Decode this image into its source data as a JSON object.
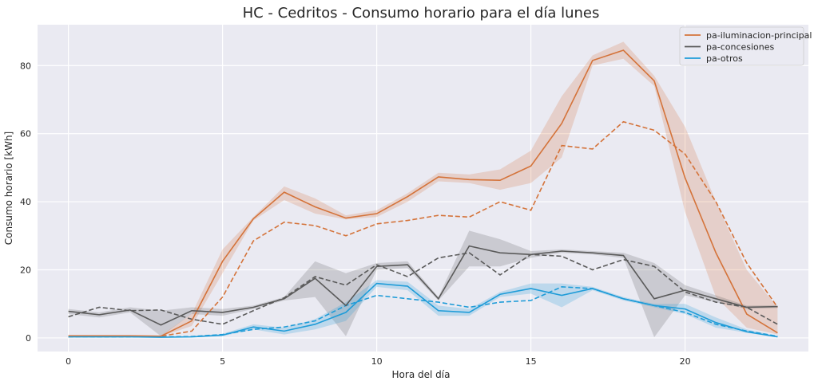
{
  "chart_data": {
    "type": "line",
    "title": "HC - Cedritos - Consumo horario para el día lunes",
    "xlabel": "Hora del día",
    "ylabel": "Consumo horario [kWh]",
    "xlim": [
      -1,
      24
    ],
    "ylim": [
      -4,
      92
    ],
    "xticks": [
      0,
      5,
      10,
      15,
      20
    ],
    "yticks": [
      0,
      20,
      40,
      60,
      80
    ],
    "grid": true,
    "legend_position": "top-right",
    "x": [
      0,
      1,
      2,
      3,
      4,
      5,
      6,
      7,
      8,
      9,
      10,
      11,
      12,
      13,
      14,
      15,
      16,
      17,
      18,
      19,
      20,
      21,
      22,
      23
    ],
    "series": [
      {
        "name": "pa-iluminacion-principal",
        "color": "#d4733a",
        "values": [
          0.6,
          0.6,
          0.6,
          0.5,
          5.0,
          22.5,
          35.0,
          42.8,
          38.5,
          35.2,
          36.5,
          41.5,
          47.3,
          46.5,
          46.3,
          50.5,
          63.0,
          81.5,
          84.5,
          75.5,
          47.0,
          25.0,
          7.0,
          1.5
        ],
        "lower": [
          0.5,
          0.5,
          0.5,
          0.4,
          3.5,
          19.0,
          34.5,
          40.5,
          36.5,
          34.8,
          35.5,
          40.0,
          46.0,
          45.5,
          43.5,
          45.5,
          53.0,
          80.0,
          82.0,
          74.0,
          37.0,
          12.0,
          3.0,
          1.0
        ],
        "upper": [
          0.8,
          0.8,
          0.8,
          0.7,
          7.0,
          26.0,
          35.5,
          44.5,
          41.0,
          36.0,
          37.5,
          42.5,
          48.5,
          48.0,
          49.5,
          55.0,
          71.0,
          83.0,
          87.0,
          77.0,
          62.0,
          40.0,
          20.0,
          9.0
        ],
        "reference": [
          0.3,
          0.5,
          0.5,
          0.5,
          2.0,
          12.0,
          28.5,
          34.0,
          33.0,
          30.0,
          33.5,
          34.5,
          36.0,
          35.5,
          40.0,
          37.5,
          56.5,
          55.5,
          63.5,
          61.0,
          54.0,
          40.0,
          22.0,
          9.0
        ]
      },
      {
        "name": "pa-concesiones",
        "color": "#5a5a5a",
        "values": [
          7.8,
          6.8,
          8.2,
          3.8,
          8.0,
          7.5,
          9.0,
          11.5,
          17.5,
          9.5,
          21.0,
          21.5,
          11.5,
          27.0,
          25.0,
          24.5,
          25.5,
          25.0,
          24.2,
          11.5,
          14.0,
          11.5,
          9.0,
          9.2
        ],
        "lower": [
          7.0,
          6.0,
          7.5,
          0.5,
          7.0,
          6.5,
          8.5,
          11.0,
          12.0,
          0.5,
          20.0,
          20.5,
          11.0,
          21.0,
          21.0,
          23.5,
          25.0,
          24.5,
          23.5,
          0.2,
          12.5,
          10.5,
          8.5,
          8.8
        ],
        "upper": [
          8.5,
          7.5,
          9.0,
          8.0,
          9.0,
          8.5,
          9.5,
          12.0,
          22.5,
          19.0,
          22.0,
          22.5,
          12.0,
          31.5,
          29.0,
          25.5,
          26.0,
          25.5,
          25.0,
          22.0,
          15.5,
          12.5,
          9.5,
          9.6
        ],
        "reference": [
          6.2,
          9.0,
          8.0,
          8.2,
          5.5,
          4.0,
          8.0,
          11.8,
          18.0,
          15.5,
          21.5,
          18.0,
          23.5,
          25.0,
          18.5,
          24.5,
          24.0,
          20.0,
          23.0,
          21.0,
          13.5,
          10.5,
          9.0,
          4.0
        ]
      },
      {
        "name": "pa-otros",
        "color": "#1f9cd8",
        "values": [
          0.3,
          0.3,
          0.3,
          0.2,
          0.3,
          0.8,
          3.2,
          2.0,
          4.0,
          7.5,
          16.0,
          15.2,
          8.0,
          7.5,
          12.8,
          14.5,
          12.5,
          14.5,
          11.5,
          9.5,
          8.5,
          4.5,
          1.8,
          0.3
        ],
        "lower": [
          0.2,
          0.2,
          0.2,
          0.1,
          0.2,
          0.5,
          2.5,
          1.0,
          2.5,
          5.0,
          15.0,
          14.0,
          6.5,
          6.5,
          12.0,
          13.0,
          9.0,
          14.0,
          11.0,
          9.0,
          7.0,
          3.0,
          1.5,
          0.2
        ],
        "upper": [
          0.5,
          0.5,
          0.5,
          0.4,
          0.5,
          1.2,
          4.0,
          3.0,
          5.5,
          10.5,
          17.0,
          16.5,
          9.5,
          8.5,
          13.5,
          16.0,
          16.0,
          15.0,
          12.0,
          10.0,
          10.0,
          6.0,
          2.5,
          0.6
        ],
        "reference": [
          0.4,
          0.3,
          0.3,
          0.3,
          0.4,
          1.0,
          2.5,
          3.2,
          5.0,
          9.5,
          12.5,
          11.5,
          10.5,
          9.0,
          10.5,
          11.0,
          15.0,
          14.5,
          11.5,
          9.5,
          7.5,
          4.0,
          2.0,
          0.5
        ]
      }
    ]
  }
}
